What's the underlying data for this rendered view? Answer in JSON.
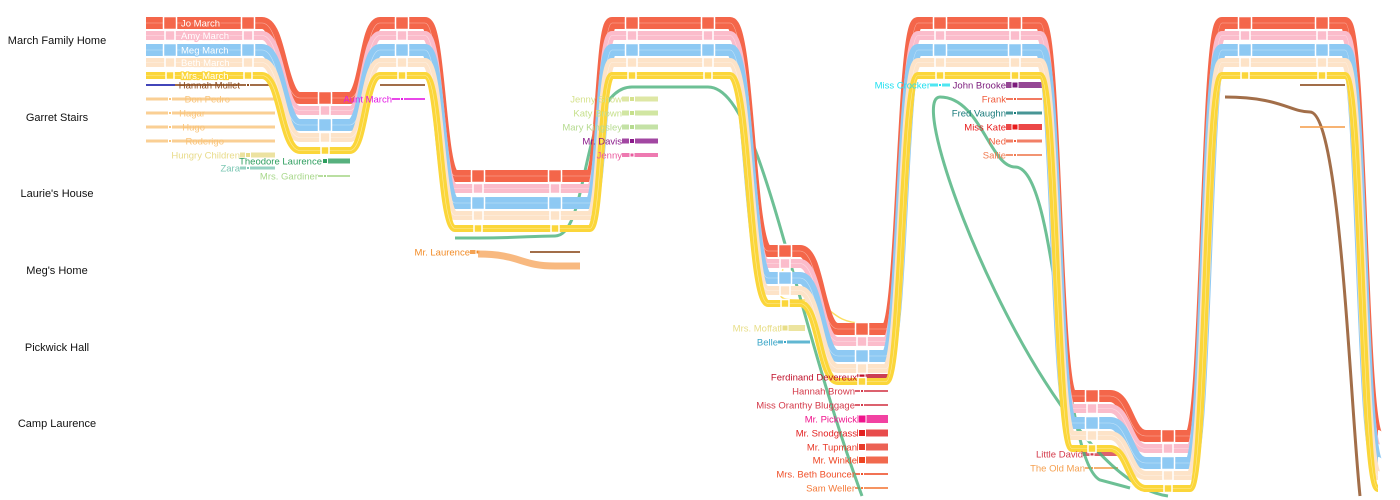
{
  "locations": [
    "March Family Home",
    "Garret Stairs",
    "Laurie's House",
    "Meg's Home",
    "Pickwick Hall",
    "Camp Laurence"
  ],
  "family": [
    {
      "name": "Jo March",
      "color": "#f4664a"
    },
    {
      "name": "Amy March",
      "color": "#fbbccb"
    },
    {
      "name": "Meg March",
      "color": "#8ec9f3"
    },
    {
      "name": "Beth March",
      "color": "#fde3c8"
    },
    {
      "name": "Mrs. March",
      "color": "#fbd63a"
    }
  ],
  "characters": [
    {
      "name": "Hannah Mullet",
      "color": "#8b4a1c"
    },
    {
      "name": "Don Pedro",
      "color": "#f9c47a"
    },
    {
      "name": "Hagar",
      "color": "#f9c47a"
    },
    {
      "name": "Hugo",
      "color": "#f9c47a"
    },
    {
      "name": "Roderigo",
      "color": "#f9c47a"
    },
    {
      "name": "Hungry Children",
      "color": "#e8db8a"
    },
    {
      "name": "Theodore Laurence",
      "color": "#2e9e5e"
    },
    {
      "name": "Zara",
      "color": "#7cc7b4"
    },
    {
      "name": "Mrs. Gardiner",
      "color": "#a9d88c"
    },
    {
      "name": "Aunt March",
      "color": "#e41ae4"
    },
    {
      "name": "Mr. Laurence",
      "color": "#f28c28"
    },
    {
      "name": "Jenny Snow",
      "color": "#d6e28e"
    },
    {
      "name": "Katy Brown",
      "color": "#c6e08c"
    },
    {
      "name": "Mary Kingsley",
      "color": "#b6db90"
    },
    {
      "name": "Mr. Davis",
      "color": "#8b1a8b"
    },
    {
      "name": "Jenny",
      "color": "#ea5a9e"
    },
    {
      "name": "Mrs. Moffat",
      "color": "#e8de88"
    },
    {
      "name": "Belle",
      "color": "#3aa6c8"
    },
    {
      "name": "Ferdinand Devereux",
      "color": "#c0102a"
    },
    {
      "name": "Hannah Brown",
      "color": "#d43a4a"
    },
    {
      "name": "Miss Oranthy Bluggage",
      "color": "#d43a4a"
    },
    {
      "name": "Mr. Pickwick",
      "color": "#f0148c"
    },
    {
      "name": "Mr. Snodgrass",
      "color": "#e32020"
    },
    {
      "name": "Mr. Tupman",
      "color": "#e83a2a"
    },
    {
      "name": "Mr. Winkle",
      "color": "#ee4422"
    },
    {
      "name": "Mrs. Beth Bouncer",
      "color": "#f0502a"
    },
    {
      "name": "Sam Weller",
      "color": "#f57a3a"
    },
    {
      "name": "Miss Crocker",
      "color": "#22e0f0"
    },
    {
      "name": "John Brooke",
      "color": "#7b1a7b"
    },
    {
      "name": "Frank",
      "color": "#f05a3a"
    },
    {
      "name": "Fred Vaughn",
      "color": "#1a7b7b"
    },
    {
      "name": "Miss Kate",
      "color": "#e81a1a"
    },
    {
      "name": "Ned",
      "color": "#f06040"
    },
    {
      "name": "Sallie",
      "color": "#f07a50"
    },
    {
      "name": "Little David",
      "color": "#d43a4a"
    },
    {
      "name": "The Old Man",
      "color": "#f5a050"
    }
  ]
}
